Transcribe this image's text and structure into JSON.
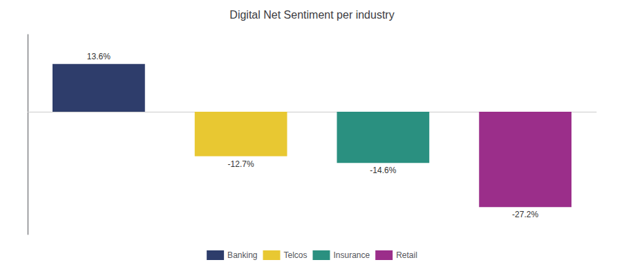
{
  "chart_data": {
    "type": "bar",
    "title": "Digital Net Sentiment per industry",
    "categories": [
      "Banking",
      "Telcos",
      "Insurance",
      "Retail"
    ],
    "values": [
      13.6,
      -12.7,
      -14.6,
      -27.2
    ],
    "value_labels": [
      "13.6%",
      "-12.7%",
      "-14.6%",
      "-27.2%"
    ],
    "colors": [
      "#2E3D6B",
      "#E8C832",
      "#2A9080",
      "#9B2E8A"
    ],
    "ylim": [
      -35,
      22
    ],
    "grid": false,
    "legend": "bottom",
    "data_labels": true,
    "tick_labels": false
  }
}
